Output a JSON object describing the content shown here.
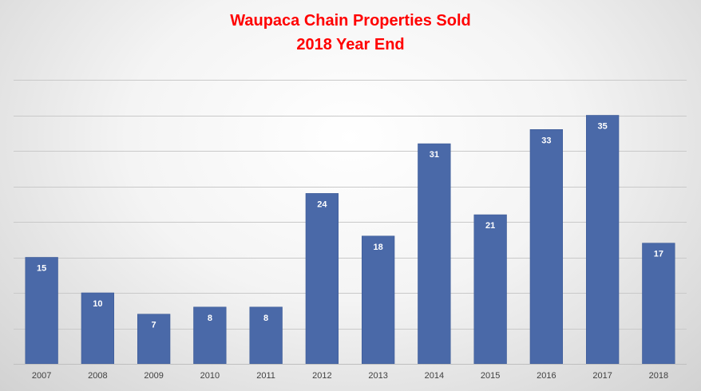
{
  "chart_data": {
    "type": "bar",
    "title": "Waupaca Chain Properties Sold",
    "subtitle": "2018 Year End",
    "categories": [
      "2007",
      "2008",
      "2009",
      "2010",
      "2011",
      "2012",
      "2013",
      "2014",
      "2015",
      "2016",
      "2017",
      "2018"
    ],
    "values": [
      15,
      10,
      7,
      8,
      8,
      24,
      18,
      31,
      21,
      33,
      35,
      17
    ],
    "xlabel": "",
    "ylabel": "",
    "ylim": [
      0,
      40
    ],
    "y_gridline_step": 5,
    "grid": true,
    "legend": "none",
    "data_labels": "inside-end",
    "y_axis_labels_shown": false
  },
  "colors": {
    "bar": "#4a69a8",
    "bar_edge": "#3c5a96",
    "title": "#ff0000",
    "gridline": "#c9c9c9",
    "axis": "#bfbfbf",
    "data_label": "#ffffff"
  }
}
